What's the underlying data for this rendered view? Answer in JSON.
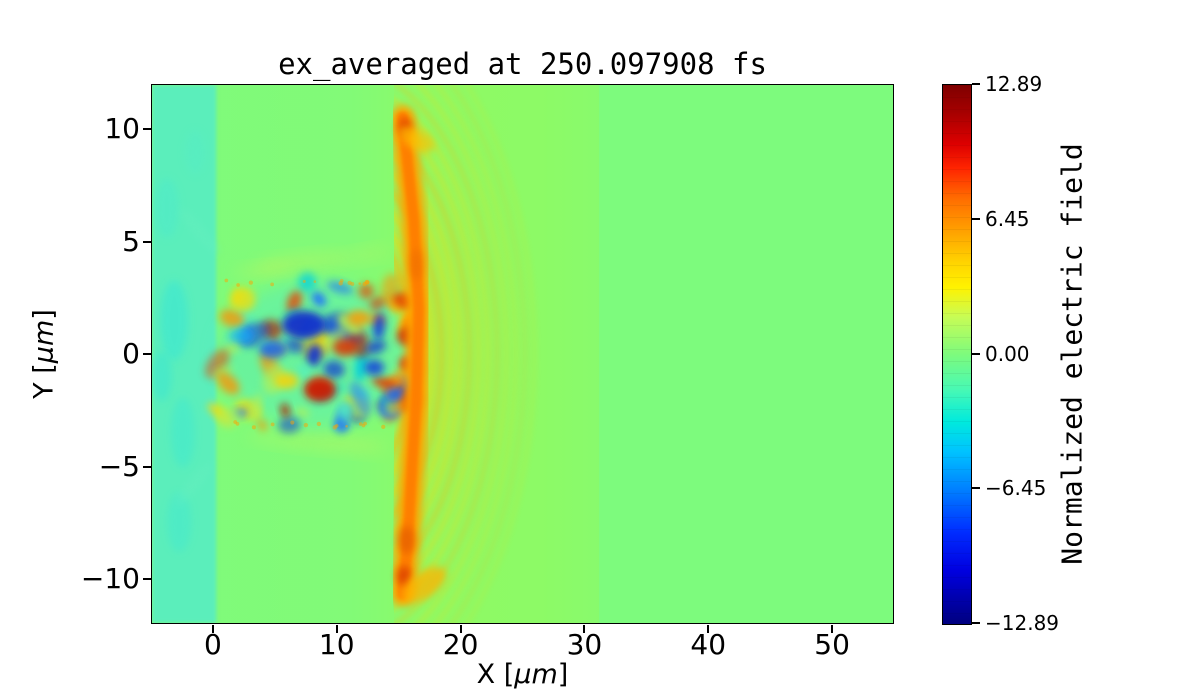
{
  "figure": {
    "title": "ex_averaged at 250.097908 fs",
    "xlabel": {
      "pre": "X [",
      "unit": "μm",
      "post": "]"
    },
    "ylabel": {
      "pre": "Y [",
      "unit": "μm",
      "post": "]"
    },
    "x_tick_labels": [
      "0",
      "10",
      "20",
      "30",
      "40",
      "50"
    ],
    "x_tick_values": [
      0,
      10,
      20,
      30,
      40,
      50
    ],
    "y_tick_labels": [
      "10",
      "5",
      "0",
      "−5",
      "−10"
    ],
    "y_tick_values": [
      10,
      5,
      0,
      -5,
      -10
    ],
    "colorbar": {
      "label": "Normalized electric field",
      "tick_labels": [
        "12.89",
        "6.45",
        "0.00",
        "−6.45",
        "−12.89"
      ],
      "tick_values": [
        12.89,
        6.45,
        0.0,
        -6.45,
        -12.89
      ]
    }
  },
  "chart_data": {
    "type": "heatmap",
    "title": "ex_averaged at 250.097908 fs",
    "field": "ex_averaged",
    "time_label": "250.097908 fs",
    "xlabel": "X [μm]",
    "ylabel": "Y [μm]",
    "xlim": [
      -5,
      55
    ],
    "ylim": [
      -12,
      12
    ],
    "grid": false,
    "colormap": "jet",
    "colorbar": {
      "label": "Normalized electric field",
      "vmin": -12.89,
      "vmax": 12.89,
      "ticks": [
        12.89,
        6.45,
        0.0,
        -6.45,
        -12.89
      ],
      "position": "right"
    },
    "features": [
      {
        "name": "uniform-zero-background",
        "x": [
          31.2,
          55
        ],
        "y": [
          -12,
          12
        ],
        "value": 0
      },
      {
        "name": "cyan-vacuum-band",
        "x": [
          -5,
          0
        ],
        "y": [
          -12,
          12
        ],
        "value": -1
      },
      {
        "name": "turbulent-laser-channel",
        "x": [
          0,
          16
        ],
        "y": [
          -3.3,
          3.3
        ],
        "value": "mixed ±12"
      },
      {
        "name": "orange-plasma-front",
        "x": [
          15,
          17.5
        ],
        "y": [
          -11,
          11
        ],
        "value": 8
      },
      {
        "name": "wakefield-arcs",
        "x": [
          16,
          31
        ],
        "y": [
          -12,
          12
        ],
        "value": 3,
        "center": [
          10,
          0
        ]
      }
    ],
    "render": {
      "zero_color": "#7dfb7d",
      "jet_stops": [
        [
          0,
          "#7f0000"
        ],
        [
          0.05,
          "#a50000"
        ],
        [
          0.11,
          "#dd0000"
        ],
        [
          0.155,
          "#ff2500"
        ],
        [
          0.21,
          "#ff6c00"
        ],
        [
          0.27,
          "#ffa000"
        ],
        [
          0.33,
          "#ffd400"
        ],
        [
          0.375,
          "#fff200"
        ],
        [
          0.43,
          "#c8fc55"
        ],
        [
          0.5,
          "#7dfb7d"
        ],
        [
          0.565,
          "#48f9b4"
        ],
        [
          0.625,
          "#00eadd"
        ],
        [
          0.68,
          "#00c3ff"
        ],
        [
          0.75,
          "#0080ff"
        ],
        [
          0.83,
          "#002cff"
        ],
        [
          0.9,
          "#0000e0"
        ],
        [
          1,
          "#00007f"
        ]
      ],
      "active_region": {
        "x": [
          0,
          31.2
        ],
        "gradient": [
          [
            0,
            "rgba(151,248,93,0.10)"
          ],
          [
            0.35,
            "rgba(151,248,93,0.18)"
          ],
          [
            0.55,
            "rgba(163,248,70,0.45)"
          ],
          [
            0.85,
            "rgba(163,248,70,0.42)"
          ],
          [
            1,
            "rgba(163,248,70,0.30)"
          ]
        ]
      },
      "vacuum_band": {
        "x": [
          -5,
          0.2
        ],
        "fill": "#59edc2",
        "opacity": 0.9
      },
      "band_blobs": [
        {
          "x": -3.2,
          "y": 1.5,
          "rx": 14,
          "ry": 40,
          "c": "#35e6d8",
          "o": 0.5
        },
        {
          "x": -2.5,
          "y": -3.5,
          "rx": 12,
          "ry": 35,
          "c": "#3ae8d4",
          "o": 0.45
        },
        {
          "x": -3.8,
          "y": 6.5,
          "rx": 12,
          "ry": 30,
          "c": "#49ead0",
          "o": 0.4
        },
        {
          "x": -2.8,
          "y": -7.5,
          "rx": 12,
          "ry": 30,
          "c": "#3fe8d2",
          "o": 0.45
        },
        {
          "x": -4.2,
          "y": -1.0,
          "rx": 10,
          "ry": 25,
          "c": "#2fe4da",
          "o": 0.4
        },
        {
          "x": -1.5,
          "y": 9.0,
          "rx": 10,
          "ry": 22,
          "c": "#55ecc8",
          "o": 0.4
        },
        {
          "x": -1.2,
          "y": 5.5,
          "rx": 6,
          "ry": 30,
          "rot": -40,
          "c": "#66f0c0",
          "o": 0.4
        },
        {
          "x": -1.6,
          "y": -5.8,
          "rx": 6,
          "ry": 28,
          "rot": 40,
          "c": "#66f0c0",
          "o": 0.4
        }
      ],
      "wisps": [
        {
          "x": 7,
          "y": 4.1,
          "rx": 45,
          "ry": 7,
          "rot": -6,
          "c": "#cdf455",
          "o": 0.4
        },
        {
          "x": 4,
          "y": 3.7,
          "rx": 30,
          "ry": 6,
          "rot": -4,
          "c": "#cdf455",
          "o": 0.35
        },
        {
          "x": 10,
          "y": -4.0,
          "rx": 50,
          "ry": 7,
          "rot": 5,
          "c": "#cdf455",
          "o": 0.4
        },
        {
          "x": 5,
          "y": -3.8,
          "rx": 28,
          "ry": 6,
          "rot": 8,
          "c": "#cdf455",
          "o": 0.3
        },
        {
          "x": 12,
          "y": 4.4,
          "rx": 30,
          "ry": 6,
          "rot": -10,
          "c": "#cdf455",
          "o": 0.3
        }
      ],
      "arcs": {
        "cx": 10,
        "cy": 0,
        "r0": 6.2,
        "dr": 0.75,
        "count": 14,
        "clip_x": 14.6,
        "color": "#ffd300",
        "alt_color": "#ffb800",
        "width0": 9,
        "opacity0": 0.55
      },
      "channel": {
        "x": [
          0.2,
          16.2
        ],
        "y": [
          -3.25,
          3.25
        ],
        "base": "#55ecbe",
        "base_opacity": 0.5,
        "count": 70,
        "seed": 11,
        "palette": [
          [
            "#0a2fd4",
            2
          ],
          [
            "#1f6dff",
            2
          ],
          [
            "#00cfe0",
            1.5
          ],
          [
            "#ffd900",
            2
          ],
          [
            "#ff9000",
            2
          ],
          [
            "#ed3b00",
            1.8
          ],
          [
            "#b31000",
            1
          ],
          [
            "#53eec0",
            2
          ],
          [
            "#aef05a",
            1.5
          ]
        ]
      },
      "hot_cluster": {
        "x": [
          13.2,
          16.9
        ],
        "y": [
          -2.6,
          2.6
        ],
        "count": 16,
        "seed": 5,
        "palette": [
          [
            "#e03000",
            3
          ],
          [
            "#ff8800",
            2
          ],
          [
            "#ffd000",
            1
          ],
          [
            "#0a38e0",
            1.2
          ],
          [
            "#00b8e8",
            0.6
          ]
        ]
      },
      "anchors": [
        {
          "x": 7.3,
          "y": 1.3,
          "rx": 22,
          "ry": 14,
          "c": "#0828d0",
          "o": 0.9
        },
        {
          "x": 4.8,
          "y": 0.2,
          "rx": 14,
          "ry": 9,
          "c": "#1255f0",
          "o": 0.8
        },
        {
          "x": 2.2,
          "y": 0.8,
          "rx": 12,
          "ry": 8,
          "c": "#18b0f0",
          "o": 0.7
        },
        {
          "x": 8.6,
          "y": -1.6,
          "rx": 16,
          "ry": 12,
          "c": "#cc1800",
          "o": 0.9
        },
        {
          "x": 10.6,
          "y": 0.3,
          "rx": 12,
          "ry": 9,
          "c": "#e03000",
          "o": 0.85
        },
        {
          "x": 13.0,
          "y": -0.6,
          "rx": 10,
          "ry": 8,
          "c": "#0a38e0",
          "o": 0.8
        },
        {
          "x": 15.8,
          "y": 0.8,
          "rx": 12,
          "ry": 10,
          "c": "#d42a00",
          "o": 0.9
        },
        {
          "x": 14.6,
          "y": -1.8,
          "rx": 9,
          "ry": 7,
          "c": "#1060ff",
          "o": 0.8
        },
        {
          "x": 5.9,
          "y": -1.2,
          "rx": 12,
          "ry": 8,
          "c": "#ffd000",
          "o": 0.8
        },
        {
          "x": 11.8,
          "y": 1.6,
          "rx": 12,
          "ry": 8,
          "c": "#ff9800",
          "o": 0.8
        }
      ],
      "front": {
        "path": [
          [
            15.3,
            10.55
          ],
          [
            16.2,
            6
          ],
          [
            16.6,
            2
          ],
          [
            16.4,
            -2
          ],
          [
            16.0,
            -5.5
          ],
          [
            15.7,
            -8.5
          ],
          [
            15.3,
            -10.7
          ]
        ],
        "outer": {
          "color": "#ffa000",
          "width": 24,
          "opacity": 0.95
        },
        "inner": {
          "color": "#ff7b00",
          "width": 11,
          "opacity": 0.9
        }
      },
      "front_spots": [
        {
          "x": 15.5,
          "y": 10.1,
          "rx": 7,
          "ry": 9,
          "c": "#dd3c00",
          "o": 0.9
        },
        {
          "x": 15.4,
          "y": -9.9,
          "rx": 7,
          "ry": 10,
          "c": "#dd4400",
          "o": 0.9
        },
        {
          "x": 15.6,
          "y": -8.3,
          "rx": 8,
          "ry": 14,
          "c": "#e66000",
          "o": 0.8
        },
        {
          "x": 16.4,
          "y": 4.0,
          "rx": 6,
          "ry": 16,
          "c": "#ef7000",
          "o": 0.7
        },
        {
          "x": 17.0,
          "y": -10.3,
          "rx": 26,
          "ry": 13,
          "rot": -35,
          "c": "#ffb300",
          "o": 0.75
        },
        {
          "x": 16.4,
          "y": 9.6,
          "rx": 20,
          "ry": 10,
          "rot": 30,
          "c": "#ffc000",
          "o": 0.7
        }
      ],
      "noise_dots": {
        "rows": [
          3.15,
          -3.15
        ],
        "x": [
          1,
          14
        ],
        "count": 14,
        "seed": 3,
        "color": "#ffa200",
        "opacity": 0.5
      }
    }
  }
}
